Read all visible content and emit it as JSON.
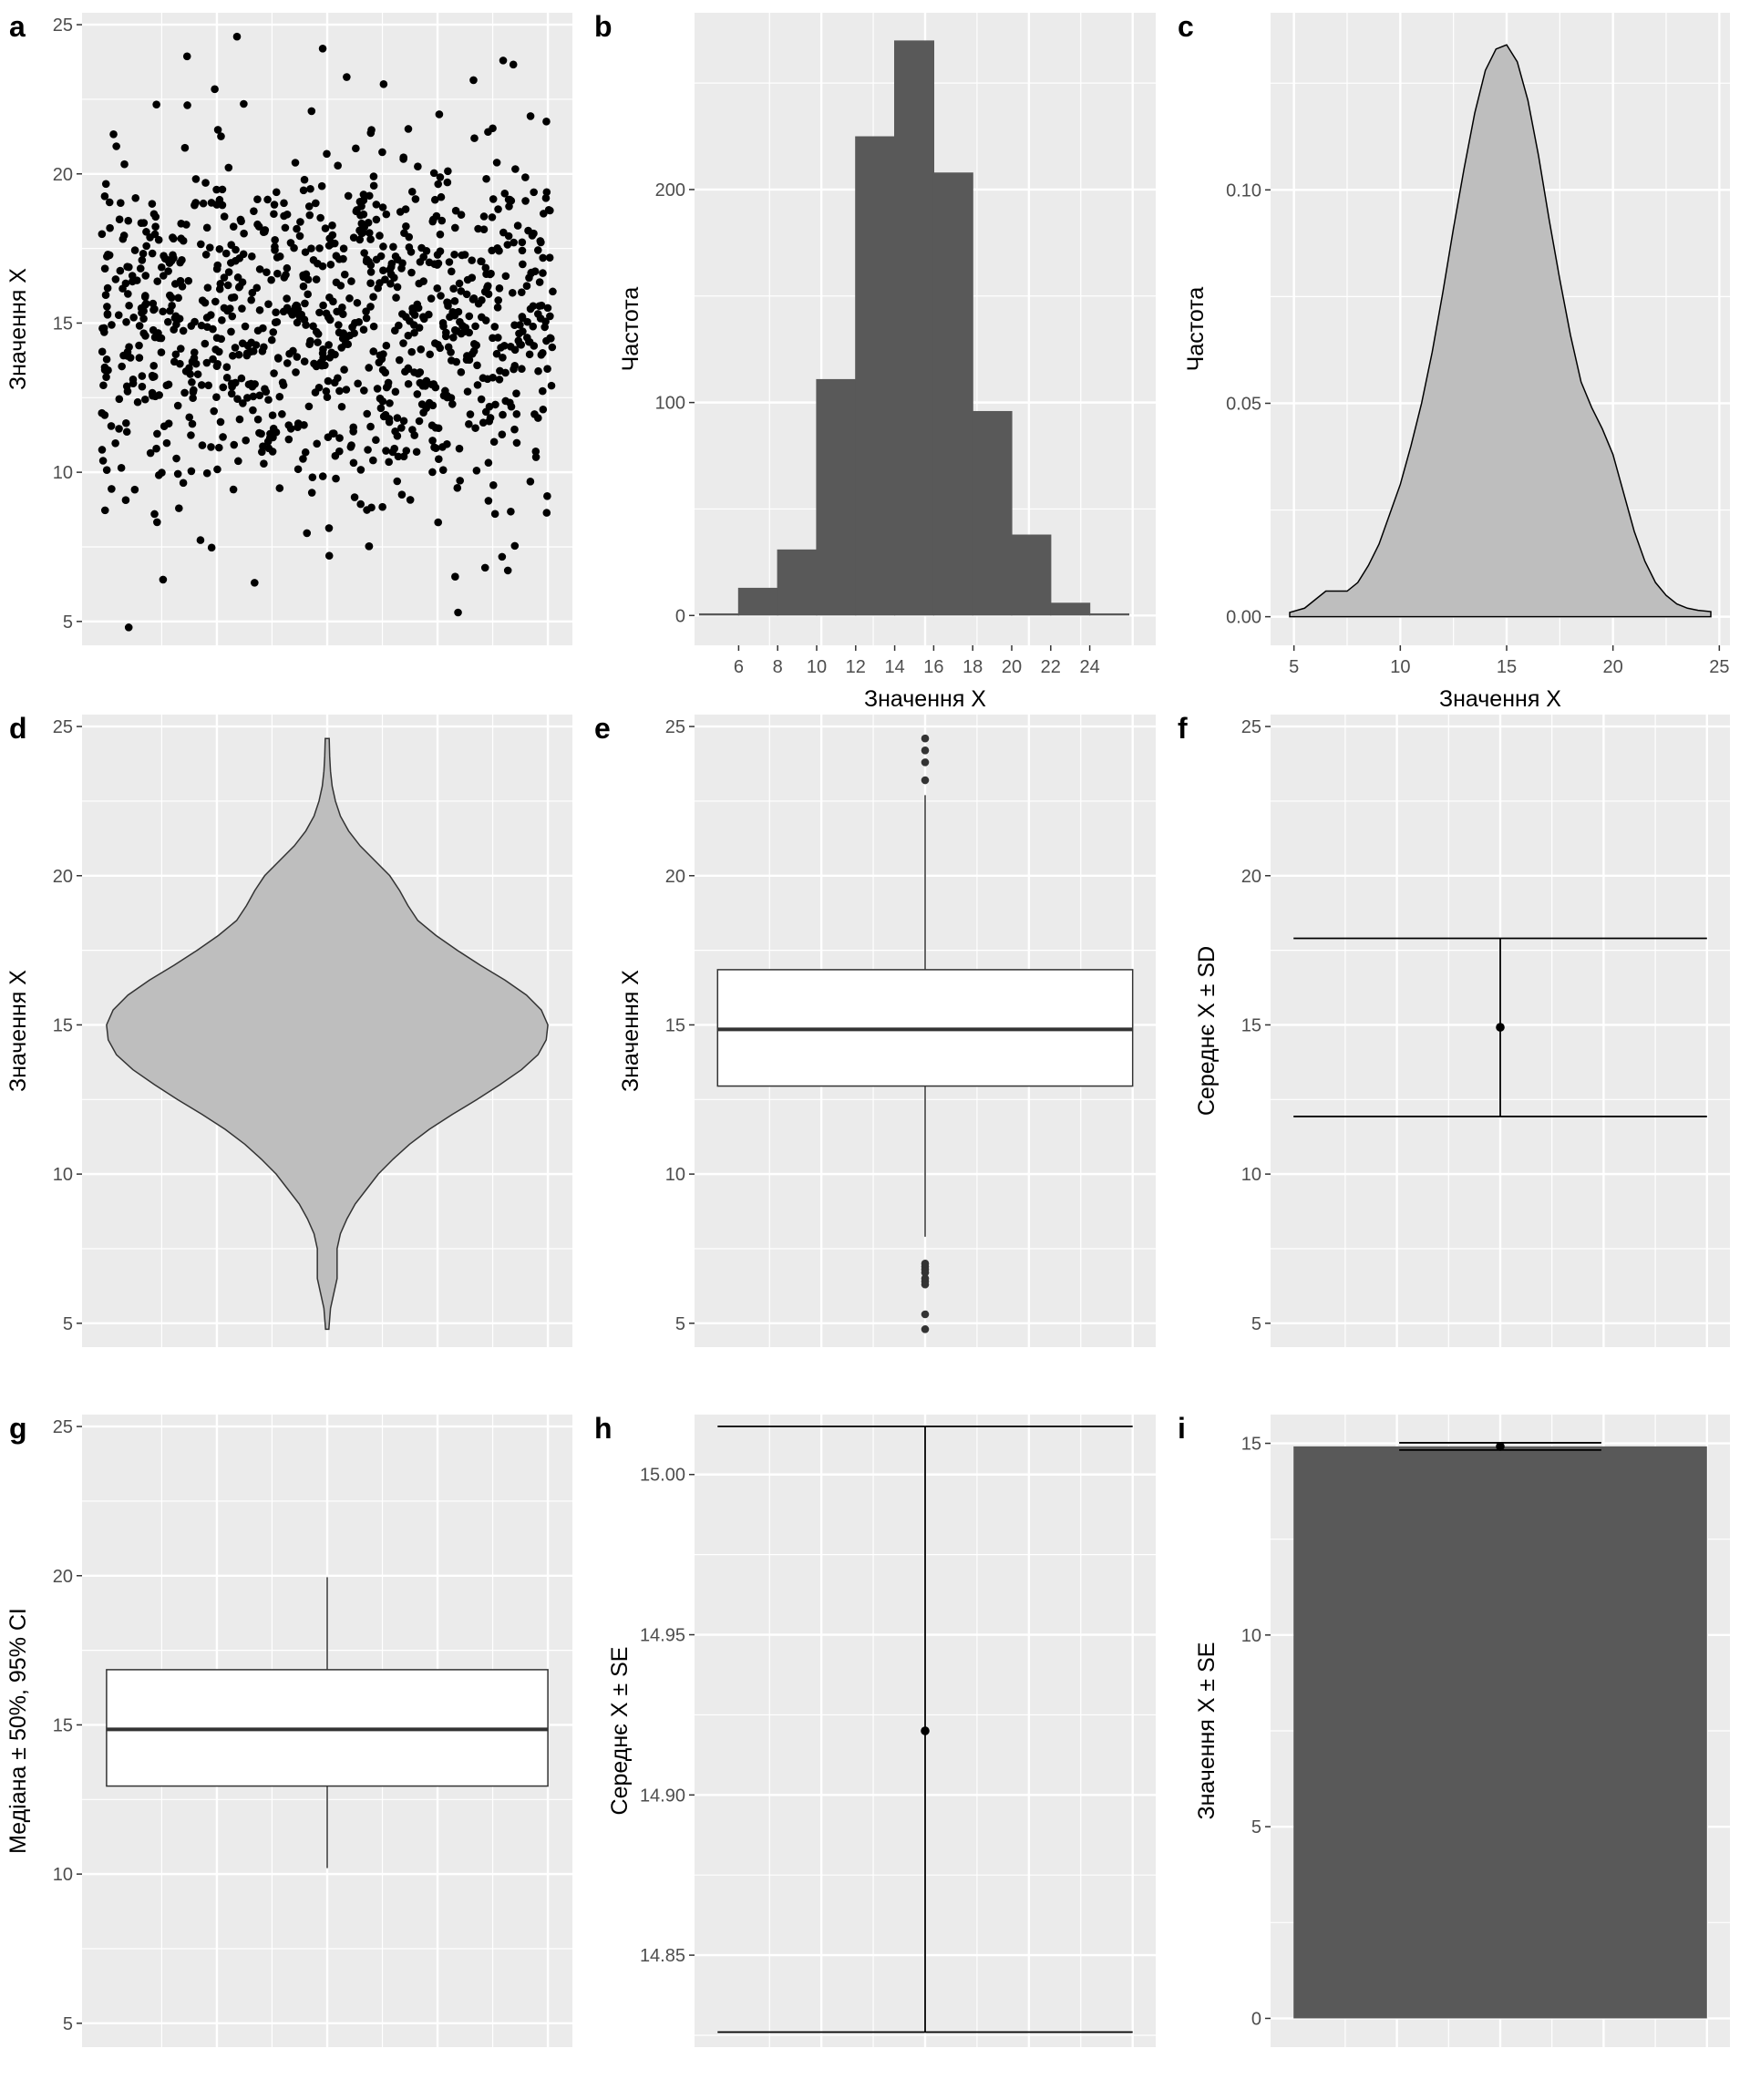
{
  "colors": {
    "panel_bg": "#EBEBEB",
    "grid": "#FFFFFF",
    "dark_fill": "#595959",
    "light_fill": "#BEBEBE",
    "point": "#000000",
    "tick_text": "#4D4D4D"
  },
  "chart_data": [
    {
      "panel": "a",
      "type": "scatter",
      "xlabel": "",
      "ylabel": "Значення X",
      "ylim": [
        4.2,
        25.4
      ],
      "yticks": [
        5,
        10,
        15,
        20,
        25
      ],
      "n_points": 1000,
      "notes": "jittered strip of ~1000 observations, approx. normal with mean 14.92 and SD 3",
      "example_points": [
        {
          "x": 0.06,
          "y": 4.8
        },
        {
          "x": 0.3,
          "y": 24.6
        },
        {
          "x": 0.49,
          "y": 24.2
        },
        {
          "x": 0.89,
          "y": 23.8
        },
        {
          "x": 0.79,
          "y": 5.3
        },
        {
          "x": 0.19,
          "y": 22.3
        },
        {
          "x": 0.85,
          "y": 6.8
        }
      ]
    },
    {
      "panel": "b",
      "type": "bar",
      "xlabel": "Значення X",
      "ylabel": "Частота",
      "ylim": [
        -14,
        283
      ],
      "yticks": [
        0,
        100,
        200
      ],
      "xticks": [
        6,
        8,
        10,
        12,
        14,
        16,
        18,
        20,
        22,
        24
      ],
      "categories": [
        "4–6",
        "6–8",
        "8–10",
        "10–12",
        "12–14",
        "14–16",
        "16–18",
        "18–20",
        "20–22",
        "22–24",
        "24–26"
      ],
      "values": [
        1,
        13,
        31,
        111,
        225,
        270,
        208,
        96,
        38,
        6,
        1
      ]
    },
    {
      "panel": "c",
      "type": "area",
      "xlabel": "Значення X",
      "ylabel": "Частота",
      "xlim": [
        3.9,
        25.5
      ],
      "ylim": [
        -0.0067,
        0.1415
      ],
      "xticks": [
        5,
        10,
        15,
        20,
        25
      ],
      "yticks": [
        0.0,
        0.05,
        0.1
      ],
      "ytick_labels": [
        "0.00",
        "0.05",
        "0.10"
      ],
      "x": [
        4.8,
        5.5,
        6.0,
        6.5,
        7.0,
        7.5,
        8.0,
        8.5,
        9.0,
        9.5,
        10.0,
        10.5,
        11.0,
        11.5,
        12.0,
        12.5,
        13.0,
        13.5,
        14.0,
        14.5,
        15.0,
        15.5,
        16.0,
        16.5,
        17.0,
        17.5,
        18.0,
        18.5,
        19.0,
        19.5,
        20.0,
        20.5,
        21.0,
        21.5,
        22.0,
        22.5,
        23.0,
        23.5,
        24.0,
        24.6
      ],
      "values": [
        0.001,
        0.002,
        0.004,
        0.006,
        0.006,
        0.006,
        0.008,
        0.012,
        0.017,
        0.024,
        0.031,
        0.04,
        0.05,
        0.062,
        0.076,
        0.091,
        0.105,
        0.118,
        0.128,
        0.133,
        0.134,
        0.13,
        0.121,
        0.108,
        0.093,
        0.079,
        0.066,
        0.055,
        0.049,
        0.044,
        0.038,
        0.029,
        0.02,
        0.013,
        0.008,
        0.005,
        0.003,
        0.002,
        0.0015,
        0.0012
      ]
    },
    {
      "panel": "d",
      "type": "area",
      "subtype": "violin",
      "xlabel": "",
      "ylabel": "Значення X",
      "ylim": [
        4.2,
        25.4
      ],
      "yticks": [
        5,
        10,
        15,
        20,
        25
      ],
      "y": [
        4.8,
        5.5,
        6.0,
        6.5,
        7.0,
        7.5,
        8.0,
        8.5,
        9.0,
        9.5,
        10.0,
        10.5,
        11.0,
        11.5,
        12.0,
        12.5,
        13.0,
        13.5,
        14.0,
        14.5,
        15.0,
        15.5,
        16.0,
        16.5,
        17.0,
        17.5,
        18.0,
        18.5,
        19.0,
        19.5,
        20.0,
        20.5,
        21.0,
        21.5,
        22.0,
        22.5,
        23.0,
        23.5,
        24.0,
        24.6
      ],
      "density": [
        0.001,
        0.002,
        0.004,
        0.006,
        0.006,
        0.006,
        0.008,
        0.012,
        0.017,
        0.024,
        0.031,
        0.04,
        0.05,
        0.062,
        0.076,
        0.091,
        0.105,
        0.118,
        0.128,
        0.133,
        0.134,
        0.13,
        0.121,
        0.108,
        0.093,
        0.079,
        0.066,
        0.055,
        0.049,
        0.044,
        0.038,
        0.029,
        0.02,
        0.013,
        0.008,
        0.005,
        0.003,
        0.002,
        0.0015,
        0.0012
      ]
    },
    {
      "panel": "e",
      "type": "boxplot",
      "xlabel": "",
      "ylabel": "Значення X",
      "ylim": [
        4.2,
        25.4
      ],
      "yticks": [
        5,
        10,
        15,
        20,
        25
      ],
      "q1": 12.95,
      "median": 14.85,
      "q3": 16.85,
      "whisker_low": 7.9,
      "whisker_high": 22.7,
      "outliers": [
        4.8,
        5.3,
        6.3,
        6.4,
        6.5,
        6.7,
        6.8,
        6.9,
        7.0,
        23.2,
        23.8,
        24.2,
        24.6
      ]
    },
    {
      "panel": "f",
      "type": "scatter",
      "subtype": "mean ± SD",
      "xlabel": "",
      "ylabel": "Середнє X ± SD",
      "ylim": [
        4.2,
        25.4
      ],
      "yticks": [
        5,
        10,
        15,
        20,
        25
      ],
      "mean": 14.92,
      "lower": 11.93,
      "upper": 17.9
    },
    {
      "panel": "g",
      "type": "boxplot",
      "subtype": "median ± 50%, 95% CI",
      "xlabel": "",
      "ylabel": "Медіана ± 50%, 95% CI",
      "ylim": [
        4.2,
        25.4
      ],
      "yticks": [
        5,
        10,
        15,
        20,
        25
      ],
      "q1": 12.95,
      "median": 14.85,
      "q3": 16.85,
      "whisker_low": 10.2,
      "whisker_high": 19.95
    },
    {
      "panel": "h",
      "type": "scatter",
      "subtype": "mean ± SE",
      "xlabel": "",
      "ylabel": "Середнє X ± SE",
      "ylim": [
        14.8213,
        15.0187
      ],
      "yticks": [
        14.85,
        14.9,
        14.95,
        15.0
      ],
      "ytick_labels": [
        "14.85",
        "14.90",
        "14.95",
        "15.00"
      ],
      "mean": 14.92,
      "lower": 14.826,
      "upper": 15.015
    },
    {
      "panel": "i",
      "type": "bar",
      "subtype": "value ± SE",
      "xlabel": "",
      "ylabel": "Значення X ± SE",
      "ylim": [
        -0.75,
        15.75
      ],
      "yticks": [
        0,
        5,
        10,
        15
      ],
      "value": 14.92,
      "lower": 14.826,
      "upper": 15.015
    }
  ]
}
